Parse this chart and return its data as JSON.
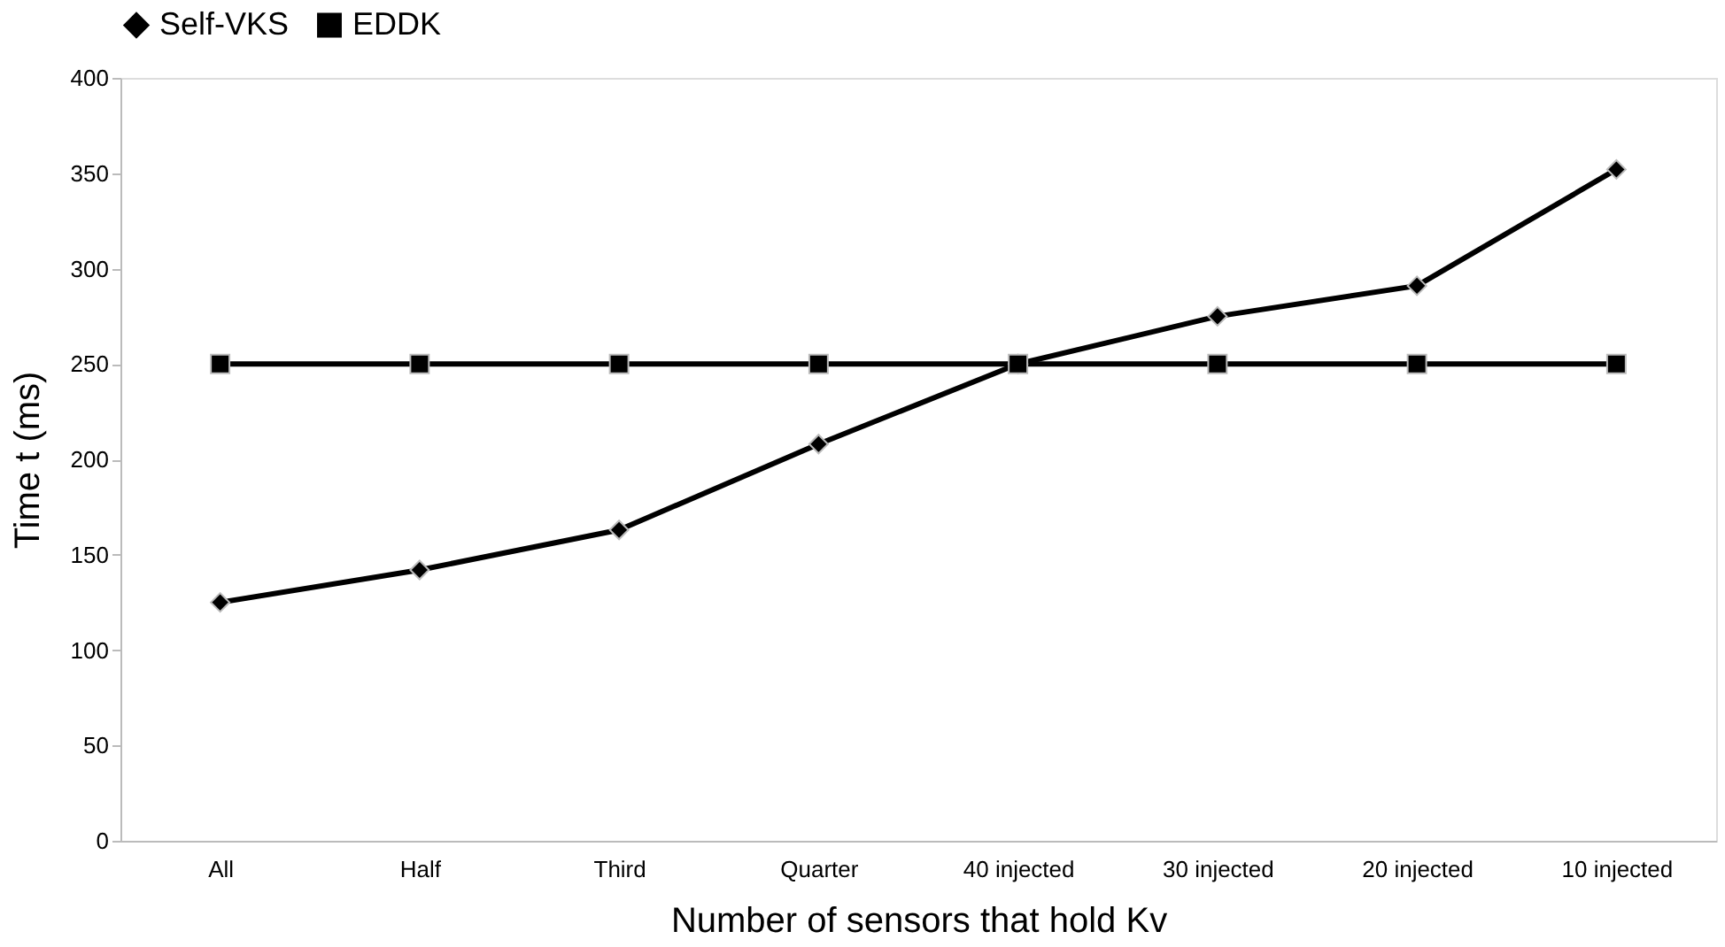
{
  "chart_data": {
    "type": "line",
    "xlabel": "Number of sensors that hold Kv",
    "ylabel": "Time t  (ms)",
    "categories": [
      "All",
      "Half",
      "Third",
      "Quarter",
      "40 injected",
      "30 injected",
      "20 injected",
      "10 injected"
    ],
    "series": [
      {
        "name": "Self-VKS",
        "color": "#000000",
        "marker": "diamond",
        "values": [
          125,
          142,
          163,
          208,
          250,
          275,
          291,
          352
        ]
      },
      {
        "name": "EDDK",
        "color": "#000000",
        "marker": "square",
        "values": [
          250,
          250,
          250,
          250,
          250,
          250,
          250,
          250
        ]
      }
    ],
    "ylim": [
      0,
      400
    ],
    "yticks": [
      0,
      50,
      100,
      150,
      200,
      250,
      300,
      350,
      400
    ],
    "grid": false,
    "legend": "top",
    "line_style": "solid"
  }
}
